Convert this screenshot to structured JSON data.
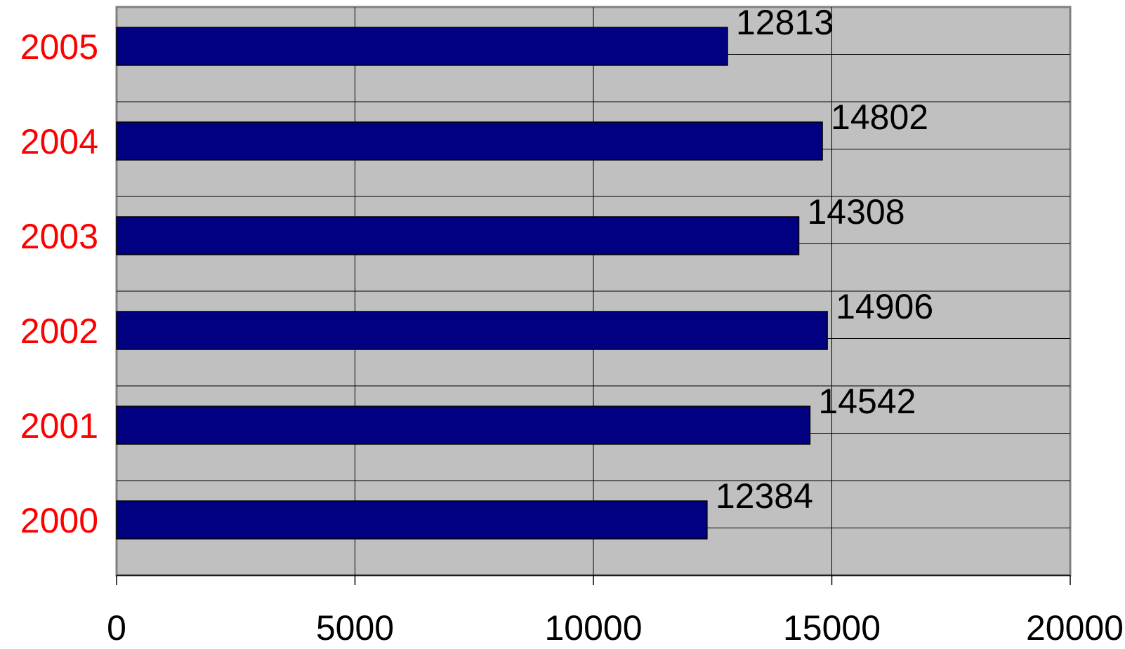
{
  "chart_data": {
    "type": "bar",
    "orientation": "horizontal",
    "categories": [
      "2005",
      "2004",
      "2003",
      "2002",
      "2001",
      "2000"
    ],
    "values": [
      12813,
      14802,
      14308,
      14906,
      14542,
      12384
    ],
    "data_labels": [
      "12813",
      "14802",
      "14308",
      "14906",
      "14542",
      "12384"
    ],
    "xlim": [
      0,
      20000
    ],
    "x_ticks": [
      0,
      5000,
      10000,
      15000,
      20000
    ],
    "x_tick_labels": [
      "0",
      "5000",
      "10000",
      "15000",
      "20000"
    ],
    "grid": true,
    "legend": "none",
    "colors": {
      "bar": "#000080",
      "plot_background": "#c0c0c0",
      "category_label": "#ff0000",
      "tick_label": "#000000",
      "gridline": "#000000"
    }
  }
}
